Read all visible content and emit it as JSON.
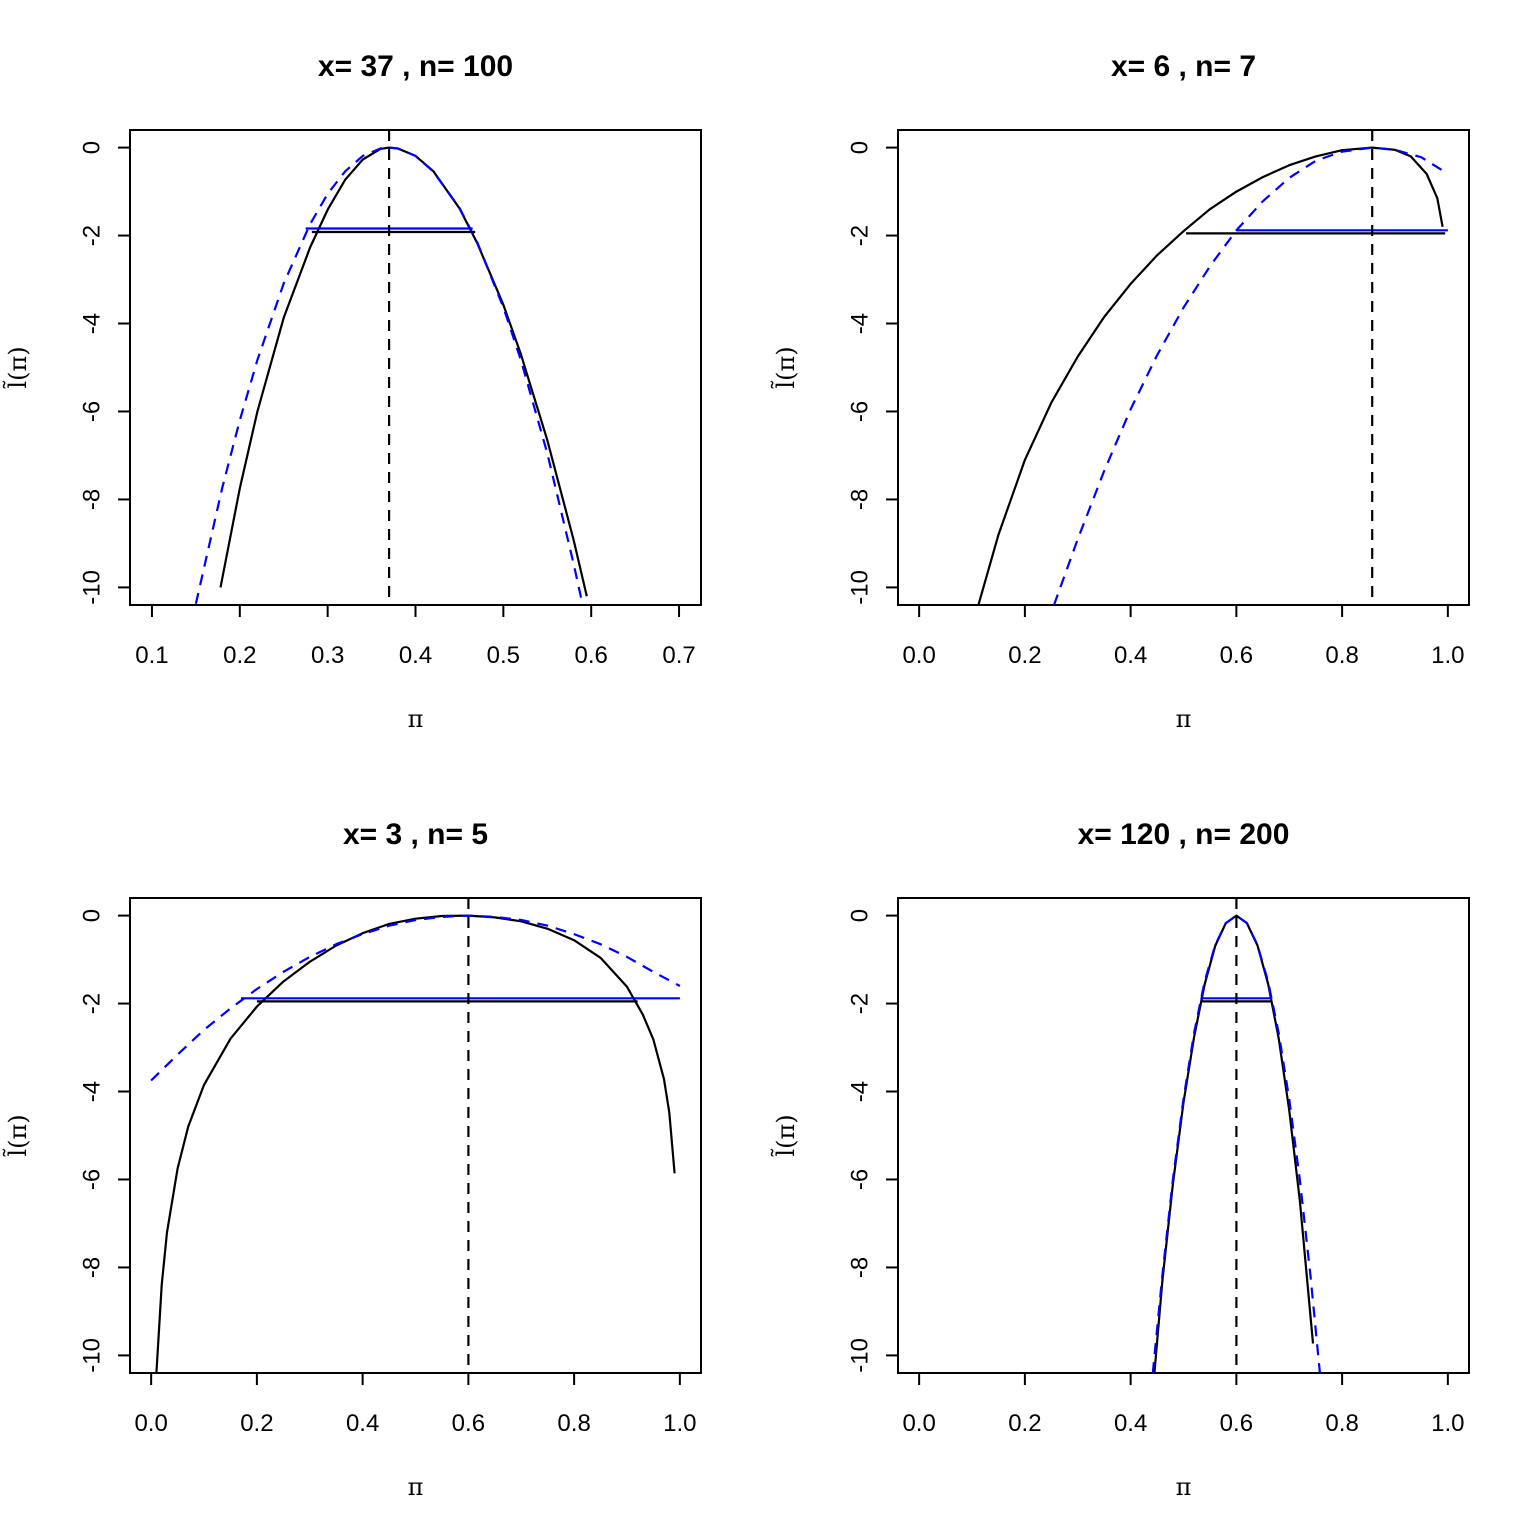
{
  "colors": {
    "curve": "#000000",
    "approx": "#0000ff"
  },
  "chart_data": [
    {
      "type": "line",
      "title": "x= 37 , n= 100",
      "xlabel": "π",
      "ylabel": "l̃(π)",
      "x": 37,
      "n": 100,
      "mle": 0.37,
      "xlim": [
        0.075,
        0.725
      ],
      "ylim": [
        -10.4,
        0.4
      ],
      "xticks": [
        0.1,
        0.2,
        0.3,
        0.4,
        0.5,
        0.6,
        0.7
      ],
      "xtick_labels": [
        "0.1",
        "0.2",
        "0.3",
        "0.4",
        "0.5",
        "0.6",
        "0.7"
      ],
      "yticks": [
        0,
        -2,
        -4,
        -6,
        -8,
        -10
      ],
      "ytick_labels": [
        "0",
        "-2",
        "-4",
        "-6",
        "-8",
        "-10"
      ],
      "grid": false,
      "legend": "none",
      "series": [
        {
          "style": "solid",
          "color": "black",
          "x": [
            0.178,
            0.2,
            0.22,
            0.25,
            0.28,
            0.3,
            0.32,
            0.34,
            0.36,
            0.37,
            0.38,
            0.4,
            0.42,
            0.45,
            0.47,
            0.5,
            0.52,
            0.55,
            0.58,
            0.595
          ],
          "y": [
            -10.0,
            -7.75,
            -6.0,
            -3.87,
            -2.27,
            -1.41,
            -0.73,
            -0.27,
            -0.03,
            0,
            -0.02,
            -0.19,
            -0.53,
            -1.38,
            -2.16,
            -3.57,
            -4.7,
            -6.65,
            -8.92,
            -10.2
          ]
        },
        {
          "style": "dashed",
          "color": "blue",
          "x": [
            0.15,
            0.18,
            0.2,
            0.22,
            0.25,
            0.28,
            0.3,
            0.32,
            0.34,
            0.36,
            0.37,
            0.38,
            0.4,
            0.42,
            0.45,
            0.47,
            0.5,
            0.52,
            0.55,
            0.58,
            0.59
          ],
          "y": [
            -10.37,
            -7.74,
            -6.2,
            -4.83,
            -3.09,
            -1.74,
            -1.05,
            -0.54,
            -0.19,
            -0.02,
            0,
            -0.02,
            -0.19,
            -0.54,
            -1.37,
            -2.14,
            -3.63,
            -4.83,
            -6.95,
            -9.46,
            -10.37
          ]
        },
        {
          "style": "solid",
          "color": "black",
          "x": [
            0.282,
            0.468
          ],
          "y": [
            -1.92,
            -1.92
          ]
        },
        {
          "style": "solid",
          "color": "blue",
          "x": [
            0.275,
            0.465
          ],
          "y": [
            -1.84,
            -1.84
          ]
        },
        {
          "style": "dashed",
          "color": "black",
          "x": [
            0.37,
            0.37
          ],
          "y": [
            0.4,
            -10.4
          ]
        }
      ]
    },
    {
      "type": "line",
      "title": "x= 6 , n= 7",
      "xlabel": "π",
      "ylabel": "l̃(π)",
      "x": 6,
      "n": 7,
      "mle": 0.857,
      "xlim": [
        -0.04,
        1.04
      ],
      "ylim": [
        -10.4,
        0.4
      ],
      "xticks": [
        0,
        0.2,
        0.4,
        0.6,
        0.8,
        1.0
      ],
      "xtick_labels": [
        "0.0",
        "0.2",
        "0.4",
        "0.6",
        "0.8",
        "1.0"
      ],
      "yticks": [
        0,
        -2,
        -4,
        -6,
        -8,
        -10
      ],
      "ytick_labels": [
        "0",
        "-2",
        "-4",
        "-6",
        "-8",
        "-10"
      ],
      "grid": false,
      "legend": "none",
      "series": [
        {
          "style": "solid",
          "color": "black",
          "x": [
            0.112,
            0.15,
            0.2,
            0.25,
            0.3,
            0.35,
            0.4,
            0.45,
            0.5,
            0.55,
            0.6,
            0.65,
            0.7,
            0.75,
            0.8,
            0.857,
            0.9,
            0.93,
            0.96,
            0.98,
            0.99
          ],
          "y": [
            -10.4,
            -8.8,
            -7.1,
            -5.8,
            -4.75,
            -3.85,
            -3.1,
            -2.45,
            -1.9,
            -1.4,
            -1.0,
            -0.67,
            -0.4,
            -0.2,
            -0.06,
            0,
            -0.05,
            -0.2,
            -0.6,
            -1.15,
            -1.8
          ]
        },
        {
          "style": "dashed",
          "color": "blue",
          "x": [
            0.255,
            0.3,
            0.35,
            0.4,
            0.45,
            0.5,
            0.55,
            0.6,
            0.65,
            0.7,
            0.75,
            0.8,
            0.857,
            0.9,
            0.95,
            0.99
          ],
          "y": [
            -10.4,
            -8.9,
            -7.35,
            -5.95,
            -4.72,
            -3.64,
            -2.7,
            -1.88,
            -1.22,
            -0.69,
            -0.3,
            -0.09,
            0,
            -0.05,
            -0.22,
            -0.52
          ]
        },
        {
          "style": "solid",
          "color": "black",
          "x": [
            0.505,
            0.995
          ],
          "y": [
            -1.95,
            -1.95
          ]
        },
        {
          "style": "solid",
          "color": "blue",
          "x": [
            0.6,
            1.0
          ],
          "y": [
            -1.88,
            -1.88
          ]
        },
        {
          "style": "dashed",
          "color": "black",
          "x": [
            0.857,
            0.857
          ],
          "y": [
            0.4,
            -10.4
          ]
        }
      ]
    },
    {
      "type": "line",
      "title": "x= 3 , n= 5",
      "xlabel": "π",
      "ylabel": "l̃(π)",
      "x": 3,
      "n": 5,
      "mle": 0.6,
      "xlim": [
        -0.04,
        1.04
      ],
      "ylim": [
        -10.4,
        0.4
      ],
      "xticks": [
        0,
        0.2,
        0.4,
        0.6,
        0.8,
        1.0
      ],
      "xtick_labels": [
        "0.0",
        "0.2",
        "0.4",
        "0.6",
        "0.8",
        "1.0"
      ],
      "yticks": [
        0,
        -2,
        -4,
        -6,
        -8,
        -10
      ],
      "ytick_labels": [
        "0",
        "-2",
        "-4",
        "-6",
        "-8",
        "-10"
      ],
      "grid": false,
      "legend": "none",
      "series": [
        {
          "style": "solid",
          "color": "black",
          "x": [
            0.01,
            0.02,
            0.03,
            0.05,
            0.07,
            0.1,
            0.15,
            0.2,
            0.25,
            0.3,
            0.35,
            0.4,
            0.45,
            0.5,
            0.55,
            0.6,
            0.65,
            0.7,
            0.75,
            0.8,
            0.85,
            0.9,
            0.93,
            0.95,
            0.97,
            0.98,
            0.99
          ],
          "y": [
            -10.4,
            -8.4,
            -7.2,
            -5.75,
            -4.8,
            -3.85,
            -2.8,
            -2.07,
            -1.5,
            -1.05,
            -0.68,
            -0.4,
            -0.19,
            -0.07,
            -0.01,
            0,
            -0.04,
            -0.13,
            -0.3,
            -0.56,
            -0.96,
            -1.62,
            -2.25,
            -2.82,
            -3.72,
            -4.48,
            -5.86
          ]
        },
        {
          "style": "dashed",
          "color": "blue",
          "x": [
            0,
            0.05,
            0.1,
            0.15,
            0.2,
            0.25,
            0.3,
            0.35,
            0.4,
            0.45,
            0.5,
            0.55,
            0.6,
            0.65,
            0.7,
            0.75,
            0.8,
            0.85,
            0.9,
            0.95,
            1.0
          ],
          "y": [
            -3.75,
            -3.16,
            -2.6,
            -2.11,
            -1.67,
            -1.28,
            -0.94,
            -0.65,
            -0.42,
            -0.23,
            -0.1,
            -0.03,
            0,
            -0.03,
            -0.1,
            -0.23,
            -0.42,
            -0.65,
            -0.94,
            -1.28,
            -1.6
          ]
        },
        {
          "style": "solid",
          "color": "black",
          "x": [
            0.2,
            0.92
          ],
          "y": [
            -1.95,
            -1.95
          ]
        },
        {
          "style": "solid",
          "color": "blue",
          "x": [
            0.17,
            1.0
          ],
          "y": [
            -1.88,
            -1.88
          ]
        },
        {
          "style": "dashed",
          "color": "black",
          "x": [
            0.6,
            0.6
          ],
          "y": [
            0.4,
            -10.4
          ]
        }
      ]
    },
    {
      "type": "line",
      "title": "x= 120 , n= 200",
      "xlabel": "π",
      "ylabel": "l̃(π)",
      "x": 120,
      "n": 200,
      "mle": 0.6,
      "xlim": [
        -0.04,
        1.04
      ],
      "ylim": [
        -10.4,
        0.4
      ],
      "xticks": [
        0,
        0.2,
        0.4,
        0.6,
        0.8,
        1.0
      ],
      "xtick_labels": [
        "0.0",
        "0.2",
        "0.4",
        "0.6",
        "0.8",
        "1.0"
      ],
      "yticks": [
        0,
        -2,
        -4,
        -6,
        -8,
        -10
      ],
      "ytick_labels": [
        "0",
        "-2",
        "-4",
        "-6",
        "-8",
        "-10"
      ],
      "grid": false,
      "legend": "none",
      "series": [
        {
          "style": "solid",
          "color": "black",
          "x": [
            0.445,
            0.46,
            0.48,
            0.5,
            0.52,
            0.54,
            0.56,
            0.58,
            0.6,
            0.62,
            0.64,
            0.66,
            0.68,
            0.7,
            0.72,
            0.745
          ],
          "y": [
            -10.4,
            -8.3,
            -6.1,
            -4.25,
            -2.76,
            -1.57,
            -0.69,
            -0.17,
            0,
            -0.17,
            -0.68,
            -1.55,
            -2.79,
            -4.42,
            -6.47,
            -9.73
          ]
        },
        {
          "style": "dashed",
          "color": "blue",
          "x": [
            0.442,
            0.46,
            0.48,
            0.5,
            0.52,
            0.54,
            0.56,
            0.58,
            0.6,
            0.62,
            0.64,
            0.66,
            0.68,
            0.7,
            0.72,
            0.74,
            0.758
          ],
          "y": [
            -10.4,
            -8.17,
            -6.0,
            -4.17,
            -2.67,
            -1.5,
            -0.67,
            -0.17,
            0,
            -0.17,
            -0.67,
            -1.5,
            -2.67,
            -4.17,
            -6.0,
            -8.17,
            -10.4
          ]
        },
        {
          "style": "solid",
          "color": "black",
          "x": [
            0.535,
            0.668
          ],
          "y": [
            -1.95,
            -1.95
          ]
        },
        {
          "style": "solid",
          "color": "blue",
          "x": [
            0.532,
            0.668
          ],
          "y": [
            -1.88,
            -1.88
          ]
        },
        {
          "style": "dashed",
          "color": "black",
          "x": [
            0.6,
            0.6
          ],
          "y": [
            0.4,
            -10.4
          ]
        }
      ]
    }
  ]
}
